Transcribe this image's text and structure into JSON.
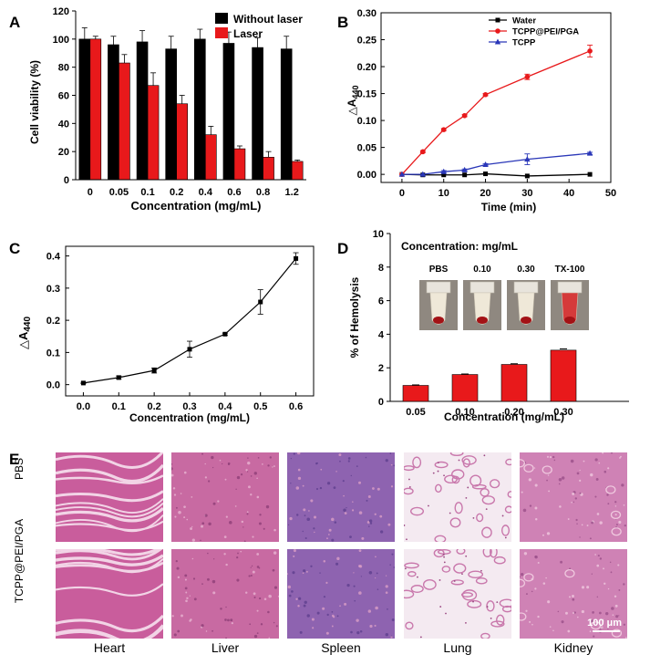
{
  "chart_data": [
    {
      "panel": "A",
      "type": "bar",
      "categories": [
        "0",
        "0.05",
        "0.1",
        "0.2",
        "0.4",
        "0.6",
        "0.8",
        "1.2"
      ],
      "series": [
        {
          "name": "Without laser",
          "color": "#000000",
          "values": [
            100,
            96,
            98,
            93,
            100,
            97,
            94,
            93
          ],
          "errors": [
            8,
            6,
            8,
            9,
            7,
            8,
            7,
            9
          ]
        },
        {
          "name": "Laser",
          "color": "#e8191b",
          "values": [
            100,
            83,
            67,
            54,
            32,
            22,
            16,
            13
          ],
          "errors": [
            2,
            6,
            9,
            6,
            6,
            2,
            4,
            1
          ]
        }
      ],
      "xlabel": "Concentration (mg/mL)",
      "ylabel": "Cell viability (%)",
      "ylim": [
        0,
        120
      ],
      "yticks": [
        0,
        20,
        40,
        60,
        80,
        100,
        120
      ]
    },
    {
      "panel": "B",
      "type": "line",
      "series": [
        {
          "name": "Water",
          "color": "#000000",
          "marker": "square",
          "x": [
            0,
            5,
            10,
            15,
            20,
            30,
            45
          ],
          "values": [
            0.0,
            -0.001,
            -0.001,
            -0.001,
            0.001,
            -0.003,
            0.0
          ],
          "errors": [
            0,
            0,
            0,
            0,
            0,
            0,
            0
          ]
        },
        {
          "name": "TCPP@PEI/PGA",
          "color": "#e8191b",
          "marker": "circle",
          "x": [
            0,
            5,
            10,
            15,
            20,
            30,
            45
          ],
          "values": [
            0.0,
            0.042,
            0.083,
            0.109,
            0.148,
            0.181,
            0.229
          ],
          "errors": [
            0,
            0.002,
            0.002,
            0.002,
            0.002,
            0.005,
            0.011
          ]
        },
        {
          "name": "TCPP",
          "color": "#2a37b8",
          "marker": "triangle",
          "x": [
            0,
            5,
            10,
            15,
            20,
            30,
            45
          ],
          "values": [
            0.0,
            0.0,
            0.005,
            0.008,
            0.018,
            0.028,
            0.039
          ],
          "errors": [
            0,
            0,
            0.002,
            0.002,
            0.002,
            0.01,
            0.002
          ]
        }
      ],
      "xlabel": "Time (min)",
      "ylabel": "△A440",
      "xlim": [
        -5,
        50
      ],
      "ylim": [
        -0.015,
        0.3
      ],
      "xticks": [
        0,
        10,
        20,
        30,
        40,
        50
      ],
      "yticks": [
        0.0,
        0.05,
        0.1,
        0.15,
        0.2,
        0.25,
        0.3
      ]
    },
    {
      "panel": "C",
      "type": "line",
      "series": [
        {
          "name": "△A440",
          "color": "#000000",
          "marker": "square",
          "x": [
            0.0,
            0.1,
            0.2,
            0.3,
            0.4,
            0.5,
            0.6
          ],
          "values": [
            0.005,
            0.022,
            0.044,
            0.11,
            0.157,
            0.257,
            0.392
          ],
          "errors": [
            0.002,
            0.005,
            0.008,
            0.025,
            0.003,
            0.038,
            0.018
          ]
        }
      ],
      "xlabel": "Concentration (mg/mL)",
      "ylabel": "△A440",
      "xlim": [
        -0.05,
        0.65
      ],
      "ylim": [
        -0.035,
        0.43
      ],
      "xticks": [
        0.0,
        0.1,
        0.2,
        0.3,
        0.4,
        0.5,
        0.6
      ],
      "yticks": [
        0.0,
        0.1,
        0.2,
        0.3,
        0.4
      ]
    },
    {
      "panel": "D",
      "type": "bar",
      "categories": [
        "0.05",
        "0.10",
        "0.20",
        "0.30"
      ],
      "series": [
        {
          "name": "% of Hemolysis",
          "color": "#e8191b",
          "values": [
            0.95,
            1.6,
            2.2,
            3.05
          ],
          "errors": [
            0.03,
            0.03,
            0.04,
            0.08
          ]
        }
      ],
      "xlabel": "Concentration (mg/mL)",
      "ylabel": "% of Hemolysis",
      "ylim": [
        0,
        10
      ],
      "yticks": [
        0,
        2,
        4,
        6,
        8,
        10
      ],
      "annotation": "Concentration: mg/mL",
      "tube_labels": [
        "PBS",
        "0.10",
        "0.30",
        "TX-100"
      ]
    }
  ],
  "panel_e": {
    "label": "E",
    "rows": [
      "PBS",
      "TCPP@PEI/PGA"
    ],
    "organs": [
      "Heart",
      "Liver",
      "Spleen",
      "Lung",
      "Kidney"
    ],
    "scale_bar": "100 μm"
  },
  "colors": {
    "red": "#e8191b",
    "black": "#000000",
    "blue": "#2a37b8",
    "tissue": "#d98fb8"
  }
}
